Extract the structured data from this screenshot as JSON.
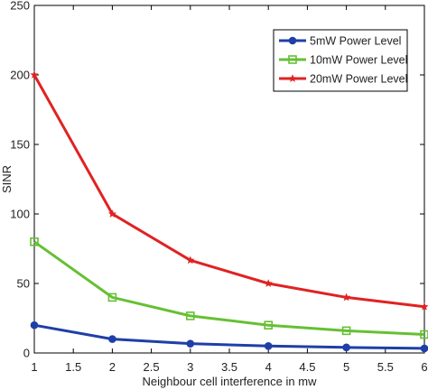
{
  "chart_data": {
    "type": "line",
    "title": "",
    "xlabel": "Neighbour cell interference in mw",
    "ylabel": "SINR",
    "x": [
      1,
      2,
      3,
      4,
      5,
      6
    ],
    "xlim": [
      1,
      6
    ],
    "ylim": [
      0,
      250
    ],
    "xticks": [
      "1",
      "1.5",
      "2",
      "2.5",
      "3",
      "3.5",
      "4",
      "4.5",
      "5",
      "5.5",
      "6"
    ],
    "yticks": [
      "0",
      "50",
      "100",
      "150",
      "200",
      "250"
    ],
    "grid": false,
    "legend_position": "top-right",
    "series": [
      {
        "name": "5mW Power Level",
        "color": "#1f3fa8",
        "marker": "circle",
        "values": [
          20,
          10,
          6.7,
          5,
          4,
          3.3
        ]
      },
      {
        "name": "10mW Power Level",
        "color": "#66c033",
        "marker": "square",
        "values": [
          80,
          40,
          26.7,
          20,
          16,
          13.3
        ]
      },
      {
        "name": "20mW Power Level",
        "color": "#e02222",
        "marker": "star",
        "values": [
          200,
          100,
          66.7,
          50,
          40,
          33.3
        ]
      }
    ]
  }
}
